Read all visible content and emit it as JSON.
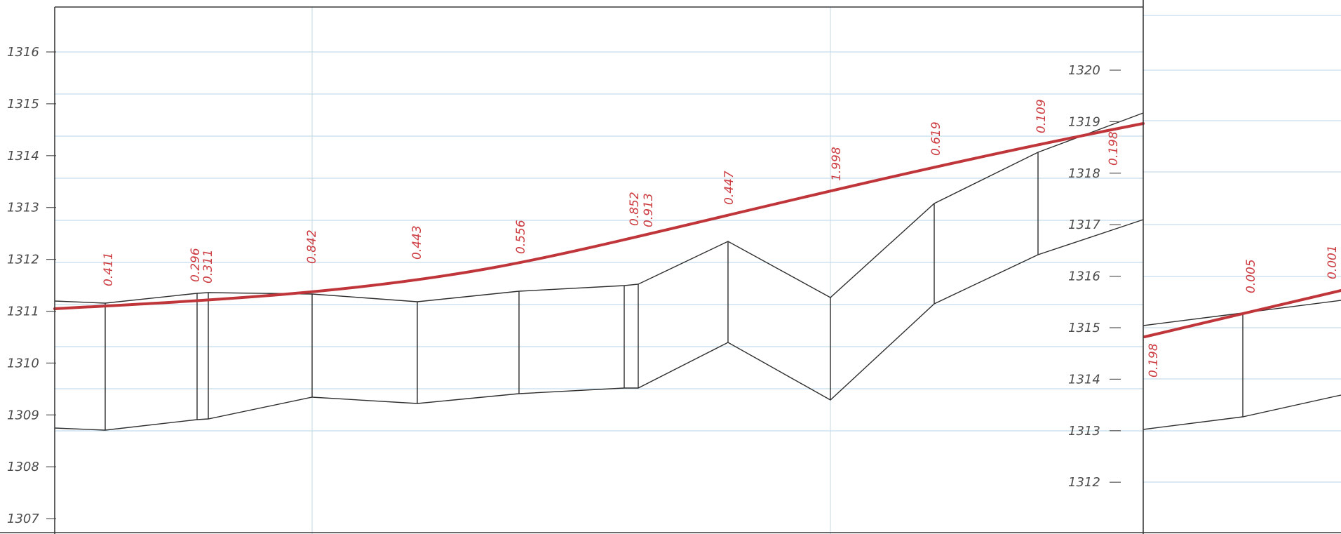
{
  "left_panel": {
    "y_axis_labels": [
      "1316",
      "1315",
      "1314",
      "1313",
      "1312",
      "1311",
      "1310",
      "1309",
      "1308",
      "1307"
    ],
    "red_labels": [
      "0.411",
      "0.296",
      "0.311",
      "0.842",
      "0.443",
      "0.556",
      "0.852",
      "0.913",
      "0.447",
      "1.998",
      "0.619",
      "0.109"
    ]
  },
  "right_panel": {
    "y_axis_labels": [
      "1320",
      "1319",
      "1318",
      "1317",
      "1316",
      "1315",
      "1314",
      "1313",
      "1312"
    ],
    "red_labels": [
      "0.198",
      "0.198",
      "0.005",
      "0.001"
    ]
  },
  "colors": {
    "red_line": "#c0353a",
    "red_text": "#cc3b40",
    "grid": "#c4dcea",
    "outline": "#2e2e2e"
  }
}
